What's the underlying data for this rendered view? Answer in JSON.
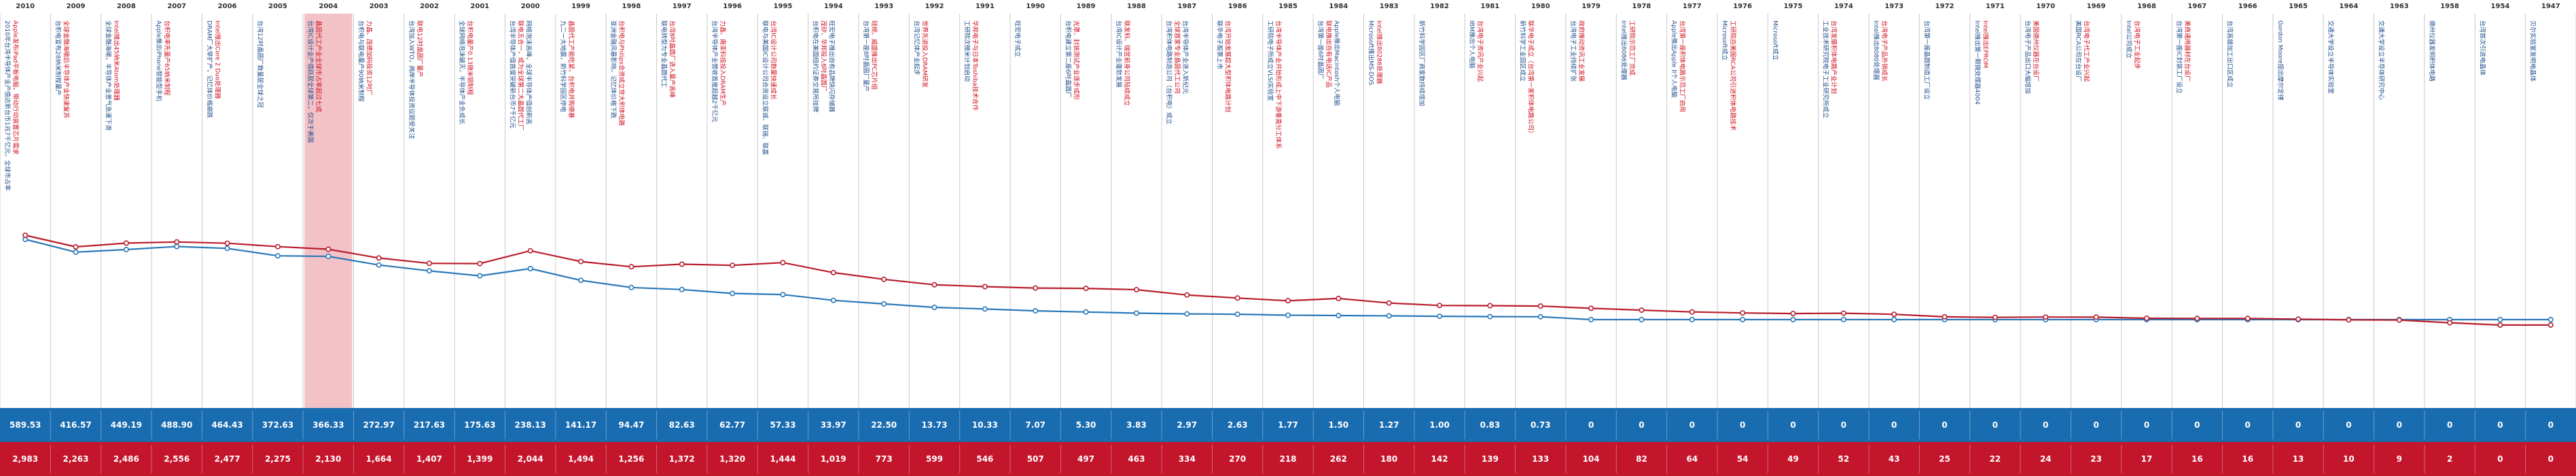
{
  "colors": {
    "blue": "#2a78b8",
    "red": "#b81d2c",
    "blue_band": "#1a6cb0",
    "red_band": "#c3152b",
    "highlight": "#f2c2c7",
    "ann_blue": "#1f4e8c",
    "ann_red": "#d0101e"
  },
  "chart_data": {
    "type": "line",
    "x": [
      "2010",
      "2009",
      "2008",
      "2007",
      "2006",
      "2005",
      "2004",
      "2003",
      "2002",
      "2001",
      "2000",
      "1999",
      "1998",
      "1997",
      "1996",
      "1995",
      "1994",
      "1993",
      "1992",
      "1991",
      "1990",
      "1989",
      "1988",
      "1987",
      "1986",
      "1985",
      "1984",
      "1983",
      "1982",
      "1981",
      "1980",
      "1979",
      "1978",
      "1977",
      "1976",
      "1975",
      "1974",
      "1973",
      "1972",
      "1971",
      "1970",
      "1969",
      "1968",
      "1967",
      "1966",
      "1965",
      "1964",
      "1963",
      "1958",
      "1954",
      "1947"
    ],
    "series": [
      {
        "color": "#2a78b8",
        "values": [
          589.53,
          416.57,
          449.19,
          488.9,
          464.43,
          372.63,
          366.33,
          272.97,
          217.63,
          175.63,
          238.13,
          141.17,
          94.47,
          82.63,
          62.77,
          57.33,
          33.97,
          22.5,
          13.73,
          10.33,
          7.07,
          5.3,
          3.83,
          2.97,
          2.63,
          1.77,
          1.5,
          1.27,
          1.0,
          0.83,
          0.73,
          0,
          0,
          0,
          0,
          0,
          0,
          0,
          0,
          0,
          0,
          0,
          0,
          0,
          0,
          0,
          0,
          0,
          0,
          0,
          0
        ],
        "labels": [
          "589.53",
          "416.57",
          "449.19",
          "488.90",
          "464.43",
          "372.63",
          "366.33",
          "272.97",
          "217.63",
          "175.63",
          "238.13",
          "141.17",
          "94.47",
          "82.63",
          "62.77",
          "57.33",
          "33.97",
          "22.50",
          "13.73",
          "10.33",
          "7.07",
          "5.30",
          "3.83",
          "2.97",
          "2.63",
          "1.77",
          "1.50",
          "1.27",
          "1.00",
          "0.83",
          "0.73",
          "0",
          "0",
          "0",
          "0",
          "0",
          "0",
          "0",
          "0",
          "0",
          "0",
          "0",
          "0",
          "0",
          "0",
          "0",
          "0",
          "0",
          "0",
          "0",
          "0"
        ]
      },
      {
        "color": "#b81d2c",
        "values": [
          2983,
          2263,
          2486,
          2556,
          2477,
          2275,
          2130,
          1664,
          1407,
          1399,
          2044,
          1494,
          1256,
          1372,
          1320,
          1444,
          1019,
          773,
          599,
          546,
          507,
          497,
          463,
          334,
          270,
          218,
          262,
          180,
          142,
          139,
          133,
          104,
          82,
          64,
          54,
          49,
          52,
          43,
          25,
          22,
          24,
          23,
          17,
          16,
          16,
          13,
          10,
          9,
          2,
          0,
          0
        ],
        "labels": [
          "2,983",
          "2,263",
          "2,486",
          "2,556",
          "2,477",
          "2,275",
          "2,130",
          "1,664",
          "1,407",
          "1,399",
          "2,044",
          "1,494",
          "1,256",
          "1,372",
          "1,320",
          "1,444",
          "1,019",
          "773",
          "599",
          "546",
          "507",
          "497",
          "463",
          "334",
          "270",
          "218",
          "262",
          "180",
          "142",
          "139",
          "133",
          "104",
          "82",
          "64",
          "54",
          "49",
          "52",
          "43",
          "25",
          "22",
          "24",
          "23",
          "17",
          "16",
          "16",
          "13",
          "10",
          "9",
          "2",
          "0",
          "0"
        ]
      }
    ],
    "highlight_year": "2004"
  },
  "annotations": [
    [
      "2010年台湾半导体产业产值达新台币1兆7千亿元，全球市占率排名第二",
      "Apple发布iPad平板电脑，带动行动装置芯片需求"
    ],
    [
      "台积电宣布28纳米制程量产",
      "全球金融海啸后半导体产业快速复苏"
    ],
    [
      "全球金融海啸，半导体产业景气急速下滑",
      "Intel推出45纳米Atom处理器"
    ],
    [
      "Apple推出iPhone智能型手机",
      "台积电率先量产65纳米制程"
    ],
    [
      "DRAM厂大举扩产，记忆体价格崩跌",
      "Intel推出Core 2 Duo处理器"
    ],
    [
      "台湾12吋晶圆厂数量居全球之冠"
    ],
    [
      "台湾IC设计业产值跃居全球第二，仅次于美国",
      "晶圆代工产业全球市占率超过七成"
    ],
    [
      "台积电与联电量产90纳米制程",
      "力晶、茂德加码投资12吋厂"
    ],
    [
      "台湾加入WTO，两岸半导体投资议题受关注",
      "联电12吋晶圆厂量产"
    ],
    [
      "全球网络泡沫破灭，半导体产业负成长",
      "台积电量产0.13微米铜制程"
    ],
    [
      "台湾半导体产值首度突破新台币7千亿元",
      "联电五合一，成为全球第二大晶圆代工厂",
      "网络泡沫高峰，全球半导体产值创新高"
    ],
    [
      "九二一大地震，新竹科学园区停电",
      "晶圆代工产能吃紧，台积电并购德碁"
    ],
    [
      "亚洲金融风暴影响，记忆体价格下跌",
      "台积电与Philips合资成立世大积体电路"
    ],
    [
      "联电转型为专业晶圆代工",
      "台湾8吋晶圆厂进入量产高峰"
    ],
    [
      "台湾半导体产业营收首度超越2千亿元",
      "力晶、南亚科技投入DRAM生产"
    ],
    [
      "联电与美国IC设计公司合资设立联诚、联瑞、联嘉",
      "台湾IC设计公司数量快速成长"
    ],
    [
      "台积电在美国纽约证券交易所挂牌",
      "茂矽、华邦投入8吋晶圆厂",
      "旺宏电子推出自有品牌快闪存储器"
    ],
    [
      "台湾第一座8吋晶圆厂量产",
      "硅统、威盛推出PC芯片组"
    ],
    [
      "台湾记忆体产业起步",
      "世界先进投入DRAM研发"
    ],
    [
      "工研院次微米计划启动",
      "华邦电子与日本Toshiba技术合作"
    ],
    [
      "旺宏电子成立"
    ],
    [
      "台积电建立第二座6吋晶圆厂",
      "光罩、封装测试产业逐步成形"
    ],
    [
      "台湾IC设计产业蓬勃发展",
      "联发科、瑞昱前身公司陆续成立"
    ],
    [
      "台湾积体电路制造公司（台积电）成立",
      "全球首家专业晶圆代工公司",
      "台湾半导体产业进入新纪元"
    ],
    [
      "联华电子股票上市",
      "台湾开始发展超大型积体电路计划"
    ],
    [
      "工研院电子所成立VLSI实验室",
      "台湾半导体产业开始形成上中下游垂直分工体系"
    ],
    [
      "台湾第一座6吋晶圆厂",
      "联电推出自有电话IC产品",
      "Apple推出Macintosh个人电脑"
    ],
    [
      "Microsoft推出MS-DOS",
      "Intel推出80286处理器"
    ],
    [
      "新竹科学园区厂商家数持续增加"
    ],
    [
      "IBM推出个人电脑",
      "台湾电子资讯产业兴起"
    ],
    [
      "新竹科学工业园区成立",
      "联华电子成立（台湾第一家积体电路公司）"
    ],
    [
      "台湾电子工业持续扩张",
      "政府推动资讯工业发展"
    ],
    [
      "Intel推出8086处理器",
      "工研院示范工厂完成"
    ],
    [
      "Apple推出Apple II个人电脑",
      "台湾第一座积体电路示范工厂启用"
    ],
    [
      "Microsoft成立",
      "工研院自美国RCA公司引进积体电路技术"
    ],
    [
      "Microsoft成立"
    ],
    [
      "工业技术研究院电子工业研究所成立",
      "台湾发展积体电路产业计划"
    ],
    [
      "Intel推出8080处理器",
      "台湾电子产品外销成长"
    ],
    [
      "台湾第一座晶圆制造工厂设立"
    ],
    [
      "Intel推出第一颗微处理器4004",
      "Intel推出EPROM"
    ],
    [
      "台湾电子产品出口大幅增加",
      "美国德州仪器在台设厂"
    ],
    [
      "美国RCA公司在台设厂",
      "台湾电子代工产业兴起"
    ],
    [
      "Intel公司成立",
      "台湾电子工业起步"
    ],
    [
      "台湾第一座IC封装工厂设立",
      "美商通用器材在台设厂"
    ],
    [
      "台湾高雄加工出口区成立"
    ],
    [
      "Gordon Moore提出摩尔定律"
    ],
    [
      "交通大学设立半导体实验室"
    ],
    [
      "交通大学设立半导体研究中心"
    ],
    [
      "德州仪器发明积体电路"
    ],
    [
      "台湾首次引进电晶体"
    ],
    [
      "贝尔实验室发明电晶体"
    ]
  ]
}
